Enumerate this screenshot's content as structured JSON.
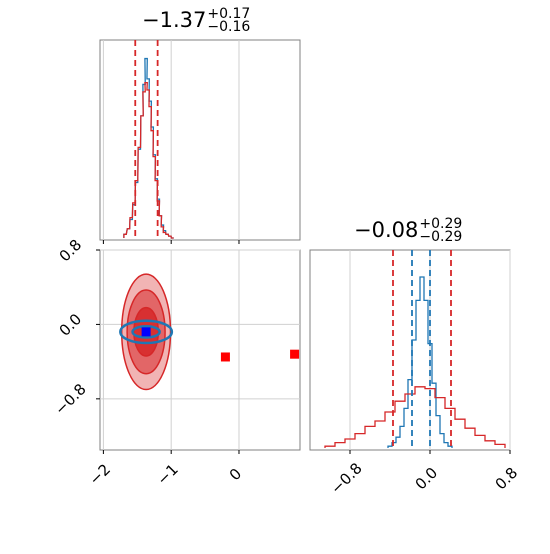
{
  "chart_data": [
    {
      "panel": "top-left",
      "type": "histogram",
      "title": {
        "value": "−1.37",
        "plus": "+0.17",
        "minus": "−0.16"
      },
      "xlim": [
        -2.05,
        0.9
      ],
      "quantile_lines": {
        "color": "#d62728",
        "style": "dashed",
        "x": [
          -1.53,
          -1.2
        ]
      },
      "grid": true,
      "series": [
        {
          "name": "",
          "color": "#1f77b4",
          "x": [
            -1.68,
            -1.63,
            -1.59,
            -1.55,
            -1.51,
            -1.47,
            -1.43,
            -1.4,
            -1.37,
            -1.34,
            -1.31,
            -1.28,
            -1.25,
            -1.22,
            -1.19,
            -1.16,
            -1.13,
            -1.1,
            -1.06,
            -1.02,
            -0.98
          ],
          "y": [
            0.02,
            0.05,
            0.1,
            0.18,
            0.3,
            0.48,
            0.66,
            0.83,
            0.97,
            0.86,
            0.74,
            0.6,
            0.45,
            0.32,
            0.21,
            0.12,
            0.07,
            0.04,
            0.02,
            0.01,
            0.0
          ]
        },
        {
          "name": "",
          "color": "#d62728",
          "x": [
            -1.68,
            -1.63,
            -1.59,
            -1.55,
            -1.51,
            -1.47,
            -1.43,
            -1.4,
            -1.37,
            -1.34,
            -1.31,
            -1.28,
            -1.25,
            -1.22,
            -1.19,
            -1.16,
            -1.13,
            -1.1,
            -1.06,
            -1.02,
            -0.98
          ],
          "y": [
            0.02,
            0.05,
            0.11,
            0.19,
            0.31,
            0.49,
            0.66,
            0.79,
            0.84,
            0.8,
            0.71,
            0.58,
            0.44,
            0.31,
            0.2,
            0.12,
            0.06,
            0.03,
            0.02,
            0.01,
            0.0
          ]
        }
      ]
    },
    {
      "panel": "bottom-right",
      "type": "histogram",
      "title": {
        "value": "−0.08",
        "plus": "+0.29",
        "minus": "−0.29"
      },
      "xlim": [
        -1.2,
        0.8
      ],
      "xticks": [
        "−0.8",
        "0.0",
        "0.8"
      ],
      "quantile_lines": [
        {
          "color": "#d62728",
          "style": "dashed",
          "x": [
            -0.37,
            0.21
          ]
        },
        {
          "color": "#1f77b4",
          "style": "dashed",
          "x": [
            -0.18,
            0.0
          ]
        }
      ],
      "grid": true,
      "series": [
        {
          "name": "",
          "color": "#1f77b4",
          "x": [
            -0.4,
            -0.36,
            -0.32,
            -0.28,
            -0.24,
            -0.2,
            -0.16,
            -0.12,
            -0.08,
            -0.04,
            0.0,
            0.04,
            0.08,
            0.12,
            0.16,
            0.2
          ],
          "y": [
            0.01,
            0.03,
            0.06,
            0.12,
            0.22,
            0.38,
            0.6,
            0.82,
            0.95,
            0.82,
            0.58,
            0.36,
            0.18,
            0.08,
            0.03,
            0.01
          ]
        },
        {
          "name": "",
          "color": "#d62728",
          "x": [
            -1.0,
            -0.9,
            -0.8,
            -0.7,
            -0.6,
            -0.5,
            -0.4,
            -0.3,
            -0.2,
            -0.1,
            0.0,
            0.1,
            0.2,
            0.3,
            0.4,
            0.5,
            0.6,
            0.7
          ],
          "y": [
            0.01,
            0.03,
            0.05,
            0.08,
            0.12,
            0.15,
            0.2,
            0.26,
            0.3,
            0.34,
            0.33,
            0.28,
            0.22,
            0.16,
            0.11,
            0.07,
            0.04,
            0.02
          ]
        }
      ]
    },
    {
      "panel": "bottom-left",
      "type": "scatter",
      "xlim": [
        -2.05,
        0.9
      ],
      "ylim": [
        -1.35,
        0.8
      ],
      "xticks": [
        "−2",
        "−1",
        "0"
      ],
      "yticks": [
        "−0.8",
        "0.0",
        "0.8"
      ],
      "grid": true,
      "contours": [
        {
          "color": "#d62728",
          "level": "outer",
          "cx": -1.37,
          "cy": -0.08,
          "rx": 0.36,
          "ry": 0.62
        },
        {
          "color": "#d62728",
          "level": "middle",
          "cx": -1.37,
          "cy": -0.08,
          "rx": 0.28,
          "ry": 0.45
        },
        {
          "color": "#d62728",
          "level": "inner",
          "cx": -1.37,
          "cy": -0.08,
          "rx": 0.18,
          "ry": 0.26
        },
        {
          "color": "#1f77b4",
          "level": "outer",
          "cx": -1.37,
          "cy": -0.08,
          "rx": 0.38,
          "ry": 0.12
        },
        {
          "color": "#1f77b4",
          "level": "inner",
          "cx": -1.37,
          "cy": -0.08,
          "rx": 0.2,
          "ry": 0.06
        }
      ],
      "markers": [
        {
          "color": "#0000ff",
          "shape": "square",
          "x": -1.37,
          "y": -0.08
        },
        {
          "color": "#ff0000",
          "shape": "square",
          "x": -0.2,
          "y": -0.35
        },
        {
          "color": "#ff0000",
          "shape": "square",
          "x": 0.82,
          "y": -0.32
        }
      ]
    }
  ]
}
